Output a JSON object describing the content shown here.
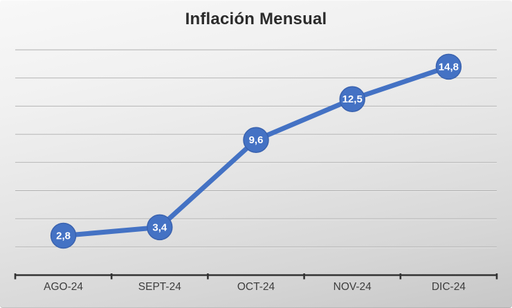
{
  "title": "Inflación Mensual",
  "chart_data": {
    "type": "line",
    "title": "Inflación Mensual",
    "categories": [
      "AGO-24",
      "SEPT-24",
      "OCT-24",
      "NOV-24",
      "DIC-24"
    ],
    "values": [
      2.8,
      3.4,
      9.6,
      12.5,
      14.8
    ],
    "point_labels": [
      "2,8",
      "3,4",
      "9,6",
      "12,5",
      "14,8"
    ],
    "xlabel": "",
    "ylabel": "",
    "ylim": [
      0,
      16
    ],
    "grid_step": 2,
    "grid": true,
    "legend_position": "none",
    "y_axis_labels_visible": false
  },
  "style": {
    "accent": "#4472C4",
    "marker_stroke": "#3a62ae",
    "marker_text_color": "#ffffff",
    "gridline_color": "#aeaeae",
    "gridline_highlight": "#f5f5f5",
    "axis_color": "#333333",
    "axis_label_color": "#3d3d3d",
    "title_color": "#2b2b2b"
  }
}
